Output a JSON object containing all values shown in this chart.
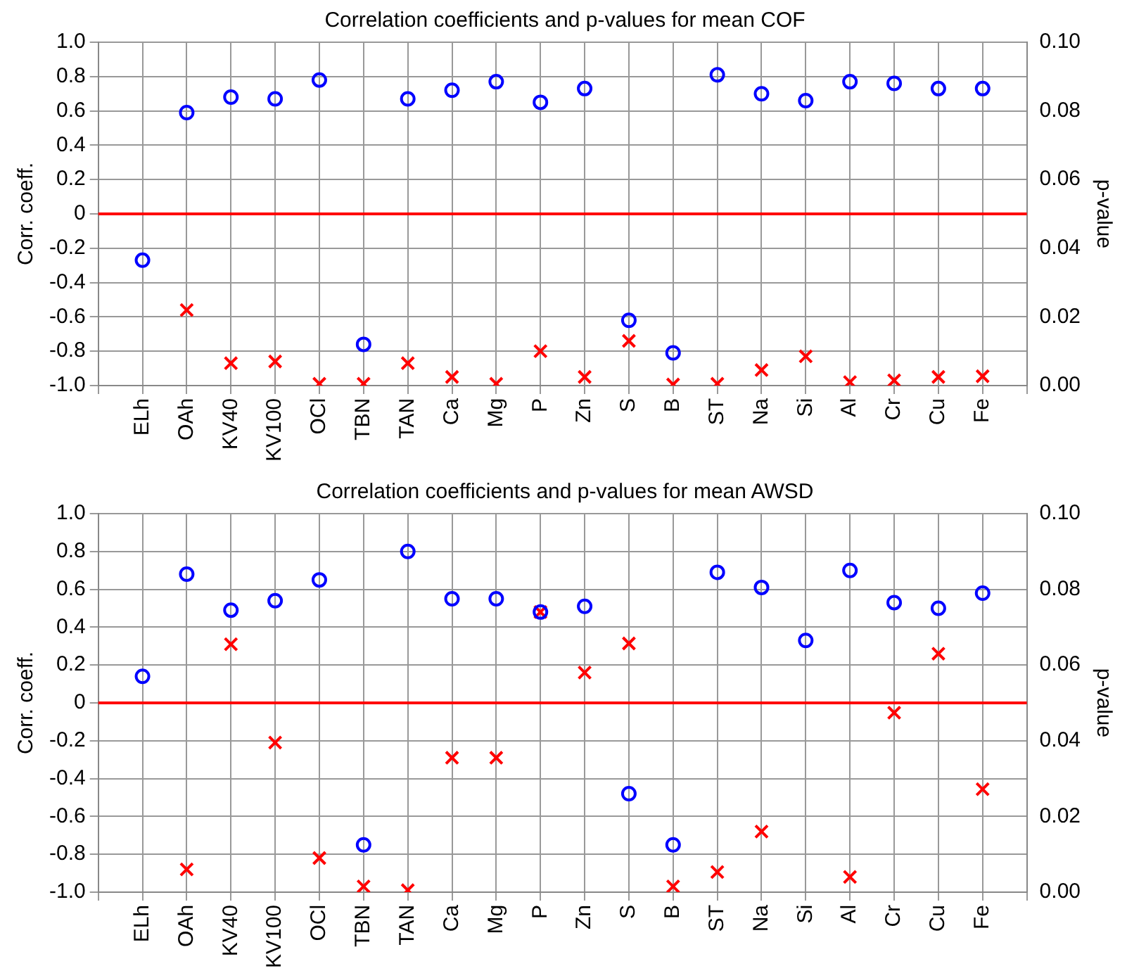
{
  "chart_data": [
    {
      "type": "scatter",
      "title": "Correlation coefficients and p-values for mean COF",
      "ylabel": "Corr. coeff.",
      "y2label": "p-value",
      "categories": [
        null,
        "ELh",
        "OAh",
        "KV40",
        "KV100",
        "OCl",
        "TBN",
        "TAN",
        "Ca",
        "Mg",
        "P",
        "Zn",
        "S",
        "B",
        "ST",
        "Na",
        "Si",
        "Al",
        "Cr",
        "Cu",
        "Fe",
        null
      ],
      "series": [
        {
          "color": "#0000ff",
          "marker": "circle",
          "values": [
            null,
            -0.27,
            0.59,
            0.68,
            0.67,
            0.78,
            -0.76,
            0.67,
            0.72,
            0.77,
            0.65,
            0.73,
            -0.62,
            -0.81,
            0.81,
            0.7,
            0.66,
            0.77,
            0.76,
            0.73,
            0.73,
            null
          ]
        },
        {
          "color": "#ff0000",
          "marker": "cross",
          "axis": "y2",
          "values": [
            null,
            null,
            0.022,
            0.0065,
            0.007,
            0.0005,
            0.0005,
            0.0065,
            0.0025,
            0.0005,
            0.01,
            0.0025,
            0.013,
            0.0003,
            0.0005,
            0.0045,
            0.0085,
            0.001,
            0.0015,
            0.0025,
            0.0027,
            null
          ]
        }
      ],
      "ylim": [
        -1,
        1
      ],
      "yticks": [
        {
          "value": -1,
          "label": "-1.0"
        },
        {
          "value": -0.8,
          "label": "-0.8"
        },
        {
          "value": -0.6,
          "label": "-0.6"
        },
        {
          "value": -0.4,
          "label": "-0.4"
        },
        {
          "value": -0.2,
          "label": "-0.2"
        },
        0,
        {
          "value": 0.2,
          "label": "0.2"
        },
        {
          "value": 0.4,
          "label": "0.4"
        },
        {
          "value": 0.6,
          "label": "0.6"
        },
        {
          "value": 0.8,
          "label": "0.8"
        },
        {
          "value": 1,
          "label": "1.0"
        }
      ],
      "y2lim": [
        0,
        0.1
      ],
      "y2ticks": [
        {
          "value": 0,
          "label": "0.00"
        },
        {
          "value": 0.02,
          "label": "0.02"
        },
        {
          "value": 0.04,
          "label": "0.04"
        },
        {
          "value": 0.06,
          "label": "0.06"
        },
        {
          "value": 0.08,
          "label": "0.08"
        },
        {
          "value": 0.1,
          "label": "0.10"
        }
      ],
      "ref_lines": [
        {
          "axis": "y",
          "value": 0,
          "color": "#ff0000"
        }
      ],
      "grid": true,
      "legend": false
    },
    {
      "type": "scatter",
      "title": "Correlation coefficients and p-values for mean AWSD",
      "ylabel": "Corr. coeff.",
      "y2label": "p-value",
      "categories": [
        null,
        "ELh",
        "OAh",
        "KV40",
        "KV100",
        "OCl",
        "TBN",
        "TAN",
        "Ca",
        "Mg",
        "P",
        "Zn",
        "S",
        "B",
        "ST",
        "Na",
        "Si",
        "Al",
        "Cr",
        "Cu",
        "Fe",
        null
      ],
      "series": [
        {
          "color": "#0000ff",
          "marker": "circle",
          "values": [
            null,
            0.14,
            0.68,
            0.49,
            0.54,
            0.65,
            -0.75,
            0.8,
            0.55,
            0.55,
            0.48,
            0.51,
            -0.48,
            -0.75,
            0.69,
            0.61,
            0.33,
            0.7,
            0.53,
            0.5,
            0.58,
            null
          ]
        },
        {
          "color": "#ff0000",
          "marker": "cross",
          "axis": "y2",
          "values": [
            null,
            null,
            0.006,
            0.0655,
            0.0395,
            0.009,
            0.0015,
            0.0005,
            0.0355,
            0.0355,
            0.074,
            0.058,
            0.0657,
            0.0015,
            0.0053,
            0.016,
            null,
            0.004,
            0.0474,
            0.063,
            0.0272,
            null
          ]
        }
      ],
      "ylim": [
        -1,
        1
      ],
      "yticks": [
        {
          "value": -1,
          "label": "-1.0"
        },
        {
          "value": -0.8,
          "label": "-0.8"
        },
        {
          "value": -0.6,
          "label": "-0.6"
        },
        {
          "value": -0.4,
          "label": "-0.4"
        },
        {
          "value": -0.2,
          "label": "-0.2"
        },
        0,
        {
          "value": 0.2,
          "label": "0.2"
        },
        {
          "value": 0.4,
          "label": "0.4"
        },
        {
          "value": 0.6,
          "label": "0.6"
        },
        {
          "value": 0.8,
          "label": "0.8"
        },
        {
          "value": 1,
          "label": "1.0"
        }
      ],
      "y2lim": [
        0,
        0.1
      ],
      "y2ticks": [
        {
          "value": 0,
          "label": "0.00"
        },
        {
          "value": 0.02,
          "label": "0.02"
        },
        {
          "value": 0.04,
          "label": "0.04"
        },
        {
          "value": 0.06,
          "label": "0.06"
        },
        {
          "value": 0.08,
          "label": "0.08"
        },
        {
          "value": 0.1,
          "label": "0.10"
        }
      ],
      "ref_lines": [
        {
          "axis": "y",
          "value": 0,
          "color": "#ff0000"
        }
      ],
      "grid": true,
      "legend": false
    }
  ]
}
